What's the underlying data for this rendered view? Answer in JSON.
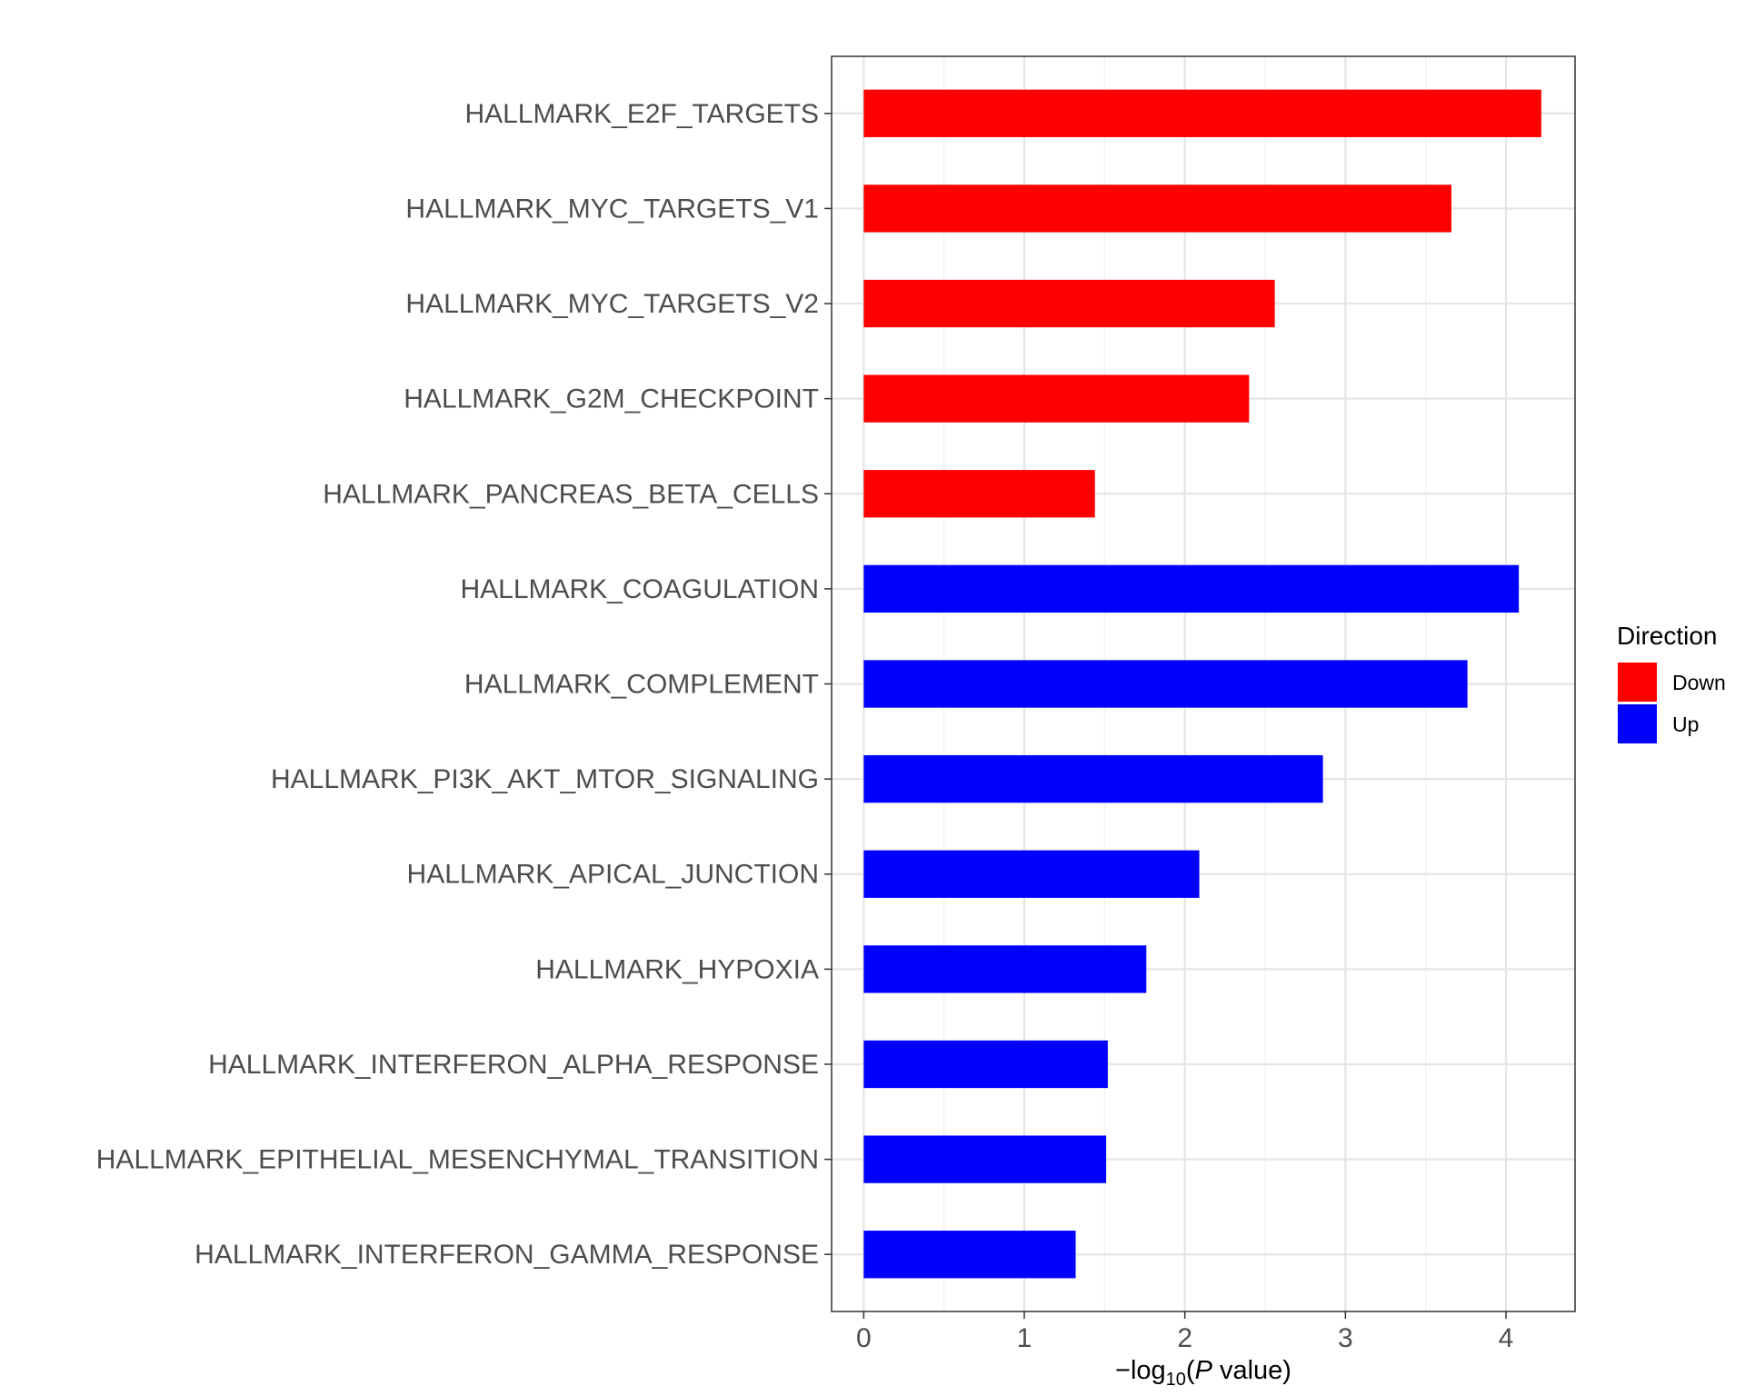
{
  "chart_data": {
    "type": "bar",
    "orientation": "horizontal",
    "categories": [
      "HALLMARK_E2F_TARGETS",
      "HALLMARK_MYC_TARGETS_V1",
      "HALLMARK_MYC_TARGETS_V2",
      "HALLMARK_G2M_CHECKPOINT",
      "HALLMARK_PANCREAS_BETA_CELLS",
      "HALLMARK_COAGULATION",
      "HALLMARK_COMPLEMENT",
      "HALLMARK_PI3K_AKT_MTOR_SIGNALING",
      "HALLMARK_APICAL_JUNCTION",
      "HALLMARK_HYPOXIA",
      "HALLMARK_INTERFERON_ALPHA_RESPONSE",
      "HALLMARK_EPITHELIAL_MESENCHYMAL_TRANSITION",
      "HALLMARK_INTERFERON_GAMMA_RESPONSE"
    ],
    "values": [
      4.22,
      3.66,
      2.56,
      2.4,
      1.44,
      4.08,
      3.76,
      2.86,
      2.09,
      1.76,
      1.52,
      1.51,
      1.32
    ],
    "direction": [
      "Down",
      "Down",
      "Down",
      "Down",
      "Down",
      "Up",
      "Up",
      "Up",
      "Up",
      "Up",
      "Up",
      "Up",
      "Up"
    ],
    "title": "",
    "xlabel_prefix": "−log",
    "xlabel_sub": "10",
    "xlabel_open": "(",
    "xlabel_italic": "P",
    "xlabel_rest": " value)",
    "ylabel": "",
    "xlim": [
      -0.2,
      4.43
    ],
    "xticks": [
      "0",
      "1",
      "2",
      "3",
      "4"
    ],
    "grid": true,
    "legend": {
      "title": "Direction",
      "position": "right",
      "entries": [
        {
          "name": "Down",
          "color": "#ff0000"
        },
        {
          "name": "Up",
          "color": "#0000ff"
        }
      ]
    }
  }
}
